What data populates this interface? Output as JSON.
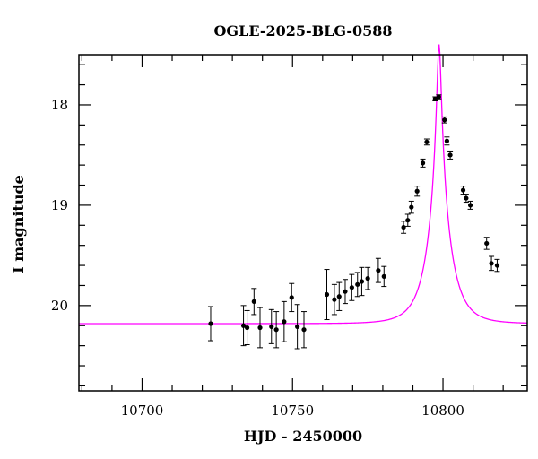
{
  "chart_data": {
    "type": "scatter",
    "title": "OGLE-2025-BLG-0588",
    "xlabel": "HJD - 2450000",
    "ylabel": "I magnitude",
    "xlim": [
      10679,
      10828
    ],
    "ylim": [
      20.85,
      17.5
    ],
    "y_inverted": true,
    "x_major_ticks": [
      10700,
      10750,
      10800
    ],
    "x_tick_labels": [
      "10700",
      "10750",
      "10800"
    ],
    "y_major_ticks": [
      18,
      19,
      20
    ],
    "y_tick_labels": [
      "18",
      "19",
      "20"
    ],
    "grid": false,
    "legend": "none",
    "colors": {
      "data": "#000000",
      "model": "#ff00ff"
    },
    "model": {
      "name": "",
      "t0": 10798.7,
      "tE": 6.8,
      "u0": 0.09,
      "I_source": 20.0,
      "I_baseline": 20.18
    },
    "series": [
      {
        "name": "",
        "x": [
          10722.8,
          10733.7,
          10734.9,
          10737.2,
          10739.2,
          10743.0,
          10744.6,
          10747.2,
          10749.7,
          10751.6,
          10753.8,
          10761.4,
          10763.9,
          10765.5,
          10767.5,
          10769.7,
          10771.6,
          10773.0,
          10775.0,
          10778.5,
          10780.4,
          10786.9,
          10788.3,
          10789.5,
          10791.4,
          10793.3,
          10794.6,
          10797.4,
          10798.6,
          10800.5,
          10801.3,
          10802.4,
          10806.7,
          10807.7,
          10809.1,
          10814.5,
          10816.1,
          10818.0
        ],
        "y": [
          20.18,
          20.2,
          20.22,
          19.96,
          20.22,
          20.21,
          20.24,
          20.16,
          19.92,
          20.21,
          20.24,
          19.89,
          19.94,
          19.91,
          19.86,
          19.82,
          19.79,
          19.76,
          19.73,
          19.65,
          19.71,
          19.22,
          19.15,
          19.02,
          18.86,
          18.58,
          18.37,
          17.94,
          17.92,
          18.15,
          18.36,
          18.5,
          18.85,
          18.93,
          19.0,
          19.38,
          19.58,
          19.6
        ],
        "err": [
          0.17,
          0.2,
          0.17,
          0.13,
          0.2,
          0.17,
          0.18,
          0.2,
          0.14,
          0.22,
          0.18,
          0.25,
          0.15,
          0.14,
          0.12,
          0.13,
          0.12,
          0.14,
          0.11,
          0.12,
          0.1,
          0.06,
          0.06,
          0.06,
          0.05,
          0.04,
          0.03,
          0.02,
          0.02,
          0.03,
          0.04,
          0.04,
          0.04,
          0.04,
          0.04,
          0.06,
          0.07,
          0.06
        ]
      }
    ]
  }
}
